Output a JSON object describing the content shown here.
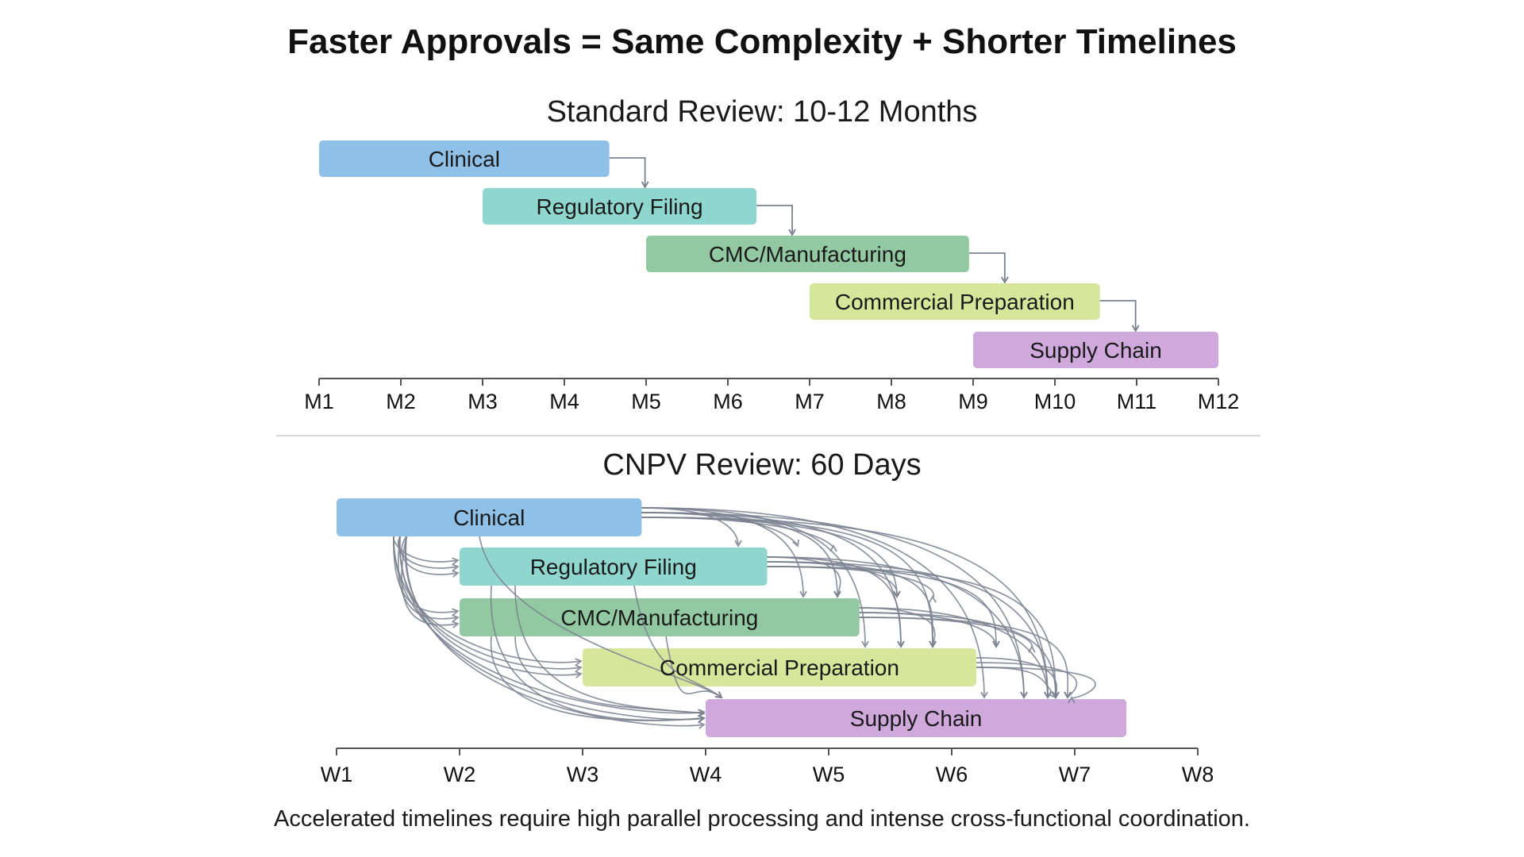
{
  "title": "Faster Approvals = Same Complexity + Shorter Timelines",
  "colors": {
    "clinical": "#8ec0e8",
    "regulatory": "#8fd6cf",
    "cmc": "#93c9a2",
    "commercial": "#d6e69a",
    "supply": "#cfa8dc",
    "arrow": "#7a8290",
    "axis": "#555555"
  },
  "standard": {
    "title": "Standard Review: 10-12 Months",
    "axis_labels": [
      "M1",
      "M2",
      "M3",
      "M4",
      "M5",
      "M6",
      "M7",
      "M8",
      "M9",
      "M10",
      "M11",
      "M12"
    ],
    "bars": [
      {
        "label": "Clinical",
        "color_key": "clinical",
        "start": 1,
        "end": 4.55
      },
      {
        "label": "Regulatory Filing",
        "color_key": "regulatory",
        "start": 3,
        "end": 6.35
      },
      {
        "label": "CMC/Manufacturing",
        "color_key": "cmc",
        "start": 5,
        "end": 8.95
      },
      {
        "label": "Commercial Preparation",
        "color_key": "commercial",
        "start": 7,
        "end": 10.55
      },
      {
        "label": "Supply Chain",
        "color_key": "supply",
        "start": 9,
        "end": 12
      }
    ],
    "dependencies": [
      [
        0,
        1
      ],
      [
        1,
        2
      ],
      [
        2,
        3
      ],
      [
        3,
        4
      ]
    ]
  },
  "cnpv": {
    "title": "CNPV Review: 60 Days",
    "axis_labels": [
      "W1",
      "W2",
      "W3",
      "W4",
      "W5",
      "W6",
      "W7",
      "W8"
    ],
    "bars": [
      {
        "label": "Clinical",
        "color_key": "clinical",
        "start": 1,
        "end": 3.48
      },
      {
        "label": "Regulatory Filing",
        "color_key": "regulatory",
        "start": 2,
        "end": 4.5
      },
      {
        "label": "CMC/Manufacturing",
        "color_key": "cmc",
        "start": 2,
        "end": 5.25
      },
      {
        "label": "Commercial Preparation",
        "color_key": "commercial",
        "start": 3,
        "end": 6.2
      },
      {
        "label": "Supply Chain",
        "color_key": "supply",
        "start": 4,
        "end": 7.42
      }
    ]
  },
  "caption": "Accelerated timelines require high parallel processing and intense cross-functional coordination."
}
